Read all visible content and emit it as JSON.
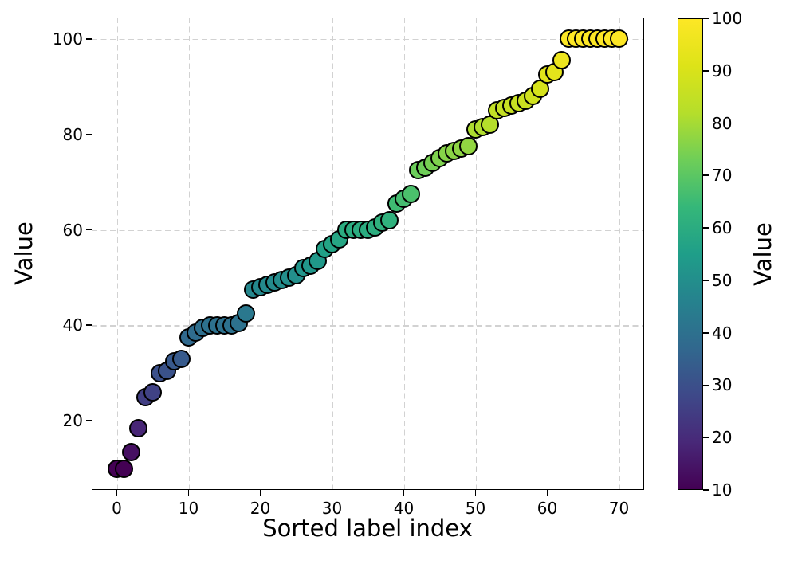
{
  "figure": {
    "background": "#ffffff",
    "grid_color": "#d2d2d2",
    "marker_edge_color": "#000000",
    "axis_color": "#000000"
  },
  "chart_data": {
    "type": "scatter",
    "title": "",
    "xlabel": "Sorted label index",
    "ylabel": "Value",
    "x": [
      0,
      1,
      2,
      3,
      4,
      5,
      6,
      7,
      8,
      9,
      10,
      11,
      12,
      13,
      14,
      15,
      16,
      17,
      18,
      19,
      20,
      21,
      22,
      23,
      24,
      25,
      26,
      27,
      28,
      29,
      30,
      31,
      32,
      33,
      34,
      35,
      36,
      37,
      38,
      39,
      40,
      41,
      42,
      43,
      44,
      45,
      46,
      47,
      48,
      49,
      50,
      51,
      52,
      53,
      54,
      55,
      56,
      57,
      58,
      59,
      60,
      61,
      62,
      63,
      64,
      65,
      66,
      67,
      68,
      69,
      70
    ],
    "values": [
      10,
      10,
      13.5,
      18.5,
      25,
      26,
      30,
      30.5,
      32.5,
      33,
      37.5,
      38.5,
      39.5,
      40,
      40,
      40,
      40,
      40.5,
      42.5,
      47.5,
      48,
      48.5,
      49,
      49.5,
      50,
      50.5,
      52,
      52.5,
      53.5,
      56,
      57,
      58,
      60,
      60,
      60,
      60,
      60.5,
      61.5,
      62,
      65.5,
      66.5,
      67.5,
      72.5,
      73,
      74,
      75,
      76,
      76.5,
      77,
      77.5,
      81,
      81.5,
      82,
      85,
      85.5,
      86,
      86.5,
      87,
      88,
      89.5,
      92.5,
      93,
      95.5,
      100,
      100,
      100,
      100,
      100,
      100,
      100,
      100
    ],
    "color_by": "value",
    "colormap": "viridis",
    "colormap_stops": [
      "#440154",
      "#482878",
      "#3e4989",
      "#31688e",
      "#26828e",
      "#1f9e89",
      "#35b779",
      "#6ece58",
      "#b5de2b",
      "#dde318",
      "#fde725"
    ],
    "vmin": 10,
    "vmax": 100,
    "xlim": [
      -3.5,
      73.5
    ],
    "ylim": [
      5.5,
      104.5
    ],
    "xticks": [
      0,
      10,
      20,
      30,
      40,
      50,
      60,
      70
    ],
    "yticks": [
      20,
      40,
      60,
      80,
      100
    ],
    "grid": true,
    "grid_style": "dashed",
    "legend": "none",
    "colorbar": {
      "label": "Value",
      "ticks": [
        10,
        20,
        30,
        40,
        50,
        60,
        70,
        80,
        90,
        100
      ],
      "position": "right"
    }
  }
}
